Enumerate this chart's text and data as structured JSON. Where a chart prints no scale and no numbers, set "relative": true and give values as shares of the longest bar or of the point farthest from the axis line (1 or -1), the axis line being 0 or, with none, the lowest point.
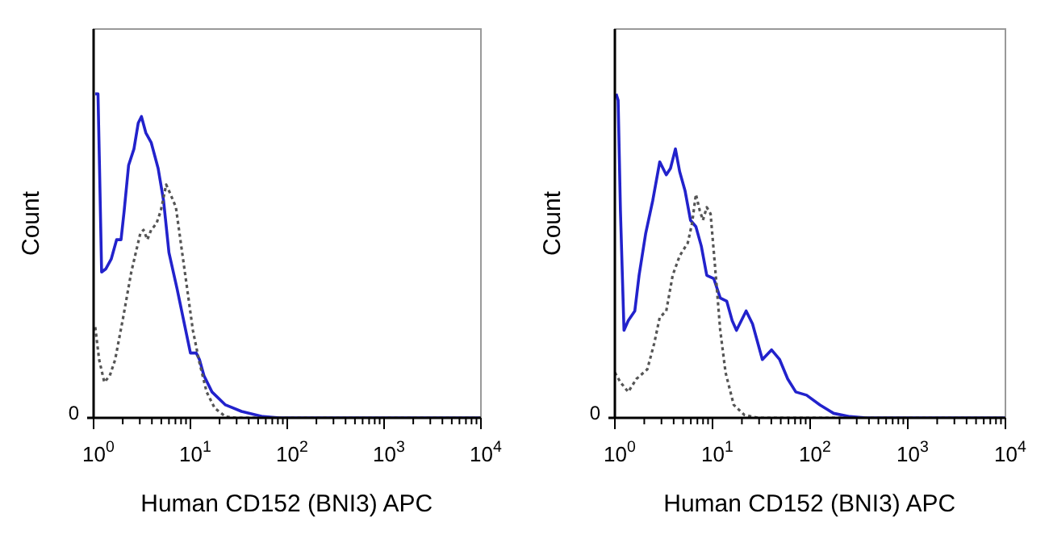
{
  "chart_data": [
    {
      "type": "line",
      "xlabel": "Human CD152 (BNI3) APC",
      "ylabel": "Count",
      "relative": true,
      "log": "x",
      "legend": false,
      "marker": "none",
      "xlim": [
        1,
        10000
      ],
      "xticks": [
        {
          "value": 1,
          "label": "10$^{0}$"
        },
        {
          "value": 2,
          "label": null
        },
        {
          "value": 3,
          "label": null
        },
        {
          "value": 4,
          "label": null
        },
        {
          "value": 5,
          "label": null
        },
        {
          "value": 6,
          "label": null
        },
        {
          "value": 7,
          "label": null
        },
        {
          "value": 8,
          "label": null
        },
        {
          "value": 9,
          "label": null
        },
        {
          "value": 10,
          "label": "10$^{1}$"
        },
        {
          "value": 20,
          "label": null
        },
        {
          "value": 30,
          "label": null
        },
        {
          "value": 40,
          "label": null
        },
        {
          "value": 50,
          "label": null
        },
        {
          "value": 60,
          "label": null
        },
        {
          "value": 70,
          "label": null
        },
        {
          "value": 80,
          "label": null
        },
        {
          "value": 90,
          "label": null
        },
        {
          "value": 100,
          "label": "10$^{2}$"
        },
        {
          "value": 200,
          "label": null
        },
        {
          "value": 300,
          "label": null
        },
        {
          "value": 400,
          "label": null
        },
        {
          "value": 500,
          "label": null
        },
        {
          "value": 600,
          "label": null
        },
        {
          "value": 700,
          "label": null
        },
        {
          "value": 800,
          "label": null
        },
        {
          "value": 900,
          "label": null
        },
        {
          "value": 1000,
          "label": "10$^{3}$"
        },
        {
          "value": 2000,
          "label": null
        },
        {
          "value": 3000,
          "label": null
        },
        {
          "value": 4000,
          "label": null
        },
        {
          "value": 5000,
          "label": null
        },
        {
          "value": 6000,
          "label": null
        },
        {
          "value": 7000,
          "label": null
        },
        {
          "value": 8000,
          "label": null
        },
        {
          "value": 9000,
          "label": null
        },
        {
          "value": 10000,
          "label": "10$^{4}$"
        }
      ],
      "annotations": [
        "0"
      ],
      "series": [
        {
          "color": "#555555",
          "line_style": "dotted",
          "x": [
            1.04,
            1.14,
            1.29,
            1.47,
            1.67,
            2.02,
            2.45,
            3.04,
            3.28,
            3.59,
            3.93,
            4.46,
            4.95,
            5.62,
            6.23,
            7.08,
            8.04,
            9.14,
            10.6,
            12.4,
            14.7,
            17.8,
            23,
            29.6,
            10000
          ],
          "values": [
            0.28,
            0.18,
            0.11,
            0.13,
            0.18,
            0.31,
            0.45,
            0.57,
            0.58,
            0.55,
            0.58,
            0.6,
            0.64,
            0.72,
            0.69,
            0.65,
            0.53,
            0.41,
            0.27,
            0.17,
            0.08,
            0.03,
            0.004,
            0,
            0
          ]
        },
        {
          "color": "#2222cc",
          "line_style": "solid",
          "x": [
            1.04,
            1.11,
            1.15,
            1.21,
            1.34,
            1.52,
            1.73,
            1.92,
            2.07,
            2.3,
            2.61,
            2.89,
            3.12,
            3.46,
            3.93,
            4.64,
            5.28,
            6.0,
            7.26,
            8.8,
            10,
            11.5,
            12.4,
            13.8,
            16.7,
            23,
            33.7,
            56,
            83,
            10000
          ],
          "values": [
            1,
            1,
            0.78,
            0.45,
            0.46,
            0.49,
            0.55,
            0.55,
            0.64,
            0.78,
            0.83,
            0.91,
            0.93,
            0.88,
            0.85,
            0.77,
            0.67,
            0.51,
            0.4,
            0.28,
            0.2,
            0.2,
            0.18,
            0.13,
            0.08,
            0.04,
            0.02,
            0.004,
            0,
            0
          ]
        }
      ]
    },
    {
      "type": "line",
      "xlabel": "Human CD152 (BNI3) APC",
      "ylabel": "Count",
      "relative": true,
      "log": "x",
      "legend": false,
      "marker": "none",
      "xlim": [
        1,
        10000
      ],
      "xticks": [
        {
          "value": 1,
          "label": "10$^{0}$"
        },
        {
          "value": 2,
          "label": null
        },
        {
          "value": 3,
          "label": null
        },
        {
          "value": 4,
          "label": null
        },
        {
          "value": 5,
          "label": null
        },
        {
          "value": 6,
          "label": null
        },
        {
          "value": 7,
          "label": null
        },
        {
          "value": 8,
          "label": null
        },
        {
          "value": 9,
          "label": null
        },
        {
          "value": 10,
          "label": "10$^{1}$"
        },
        {
          "value": 20,
          "label": null
        },
        {
          "value": 30,
          "label": null
        },
        {
          "value": 40,
          "label": null
        },
        {
          "value": 50,
          "label": null
        },
        {
          "value": 60,
          "label": null
        },
        {
          "value": 70,
          "label": null
        },
        {
          "value": 80,
          "label": null
        },
        {
          "value": 90,
          "label": null
        },
        {
          "value": 100,
          "label": "10$^{2}$"
        },
        {
          "value": 200,
          "label": null
        },
        {
          "value": 300,
          "label": null
        },
        {
          "value": 400,
          "label": null
        },
        {
          "value": 500,
          "label": null
        },
        {
          "value": 600,
          "label": null
        },
        {
          "value": 700,
          "label": null
        },
        {
          "value": 800,
          "label": null
        },
        {
          "value": 900,
          "label": null
        },
        {
          "value": 1000,
          "label": "10$^{3}$"
        },
        {
          "value": 2000,
          "label": null
        },
        {
          "value": 3000,
          "label": null
        },
        {
          "value": 4000,
          "label": null
        },
        {
          "value": 5000,
          "label": null
        },
        {
          "value": 6000,
          "label": null
        },
        {
          "value": 7000,
          "label": null
        },
        {
          "value": 8000,
          "label": null
        },
        {
          "value": 9000,
          "label": null
        },
        {
          "value": 10000,
          "label": "10$^{4}$"
        }
      ],
      "annotations": [
        "0"
      ],
      "series": [
        {
          "color": "#555555",
          "line_style": "dotted",
          "x": [
            1,
            1.14,
            1.37,
            1.66,
            2.15,
            2.53,
            2.88,
            3.36,
            3.91,
            4.61,
            5.58,
            6.17,
            6.76,
            7.4,
            7.98,
            8.73,
            9.55,
            10.6,
            12,
            13.6,
            16.5,
            21.2,
            29.3,
            10000
          ],
          "values": [
            0.14,
            0.11,
            0.08,
            0.12,
            0.15,
            0.23,
            0.31,
            0.33,
            0.44,
            0.5,
            0.54,
            0.6,
            0.69,
            0.64,
            0.61,
            0.65,
            0.63,
            0.47,
            0.27,
            0.14,
            0.04,
            0.009,
            0,
            0
          ]
        },
        {
          "color": "#2222cc",
          "line_style": "solid",
          "x": [
            1.03,
            1.08,
            1.14,
            1.24,
            1.37,
            1.6,
            1.77,
            2.07,
            2.44,
            2.88,
            3.36,
            3.71,
            4.17,
            4.61,
            5.24,
            5.95,
            6.76,
            7.68,
            8.73,
            10.3,
            12,
            14,
            15.9,
            17.6,
            22.1,
            25.7,
            32.4,
            40.2,
            48.7,
            58.9,
            71.3,
            92,
            126,
            174,
            255,
            374,
            10000
          ],
          "values": [
            1,
            0.98,
            0.64,
            0.27,
            0.3,
            0.33,
            0.44,
            0.57,
            0.67,
            0.79,
            0.75,
            0.77,
            0.83,
            0.76,
            0.7,
            0.61,
            0.59,
            0.53,
            0.44,
            0.43,
            0.37,
            0.36,
            0.3,
            0.27,
            0.33,
            0.29,
            0.18,
            0.21,
            0.18,
            0.12,
            0.08,
            0.07,
            0.04,
            0.014,
            0.004,
            0,
            0
          ]
        }
      ]
    }
  ]
}
